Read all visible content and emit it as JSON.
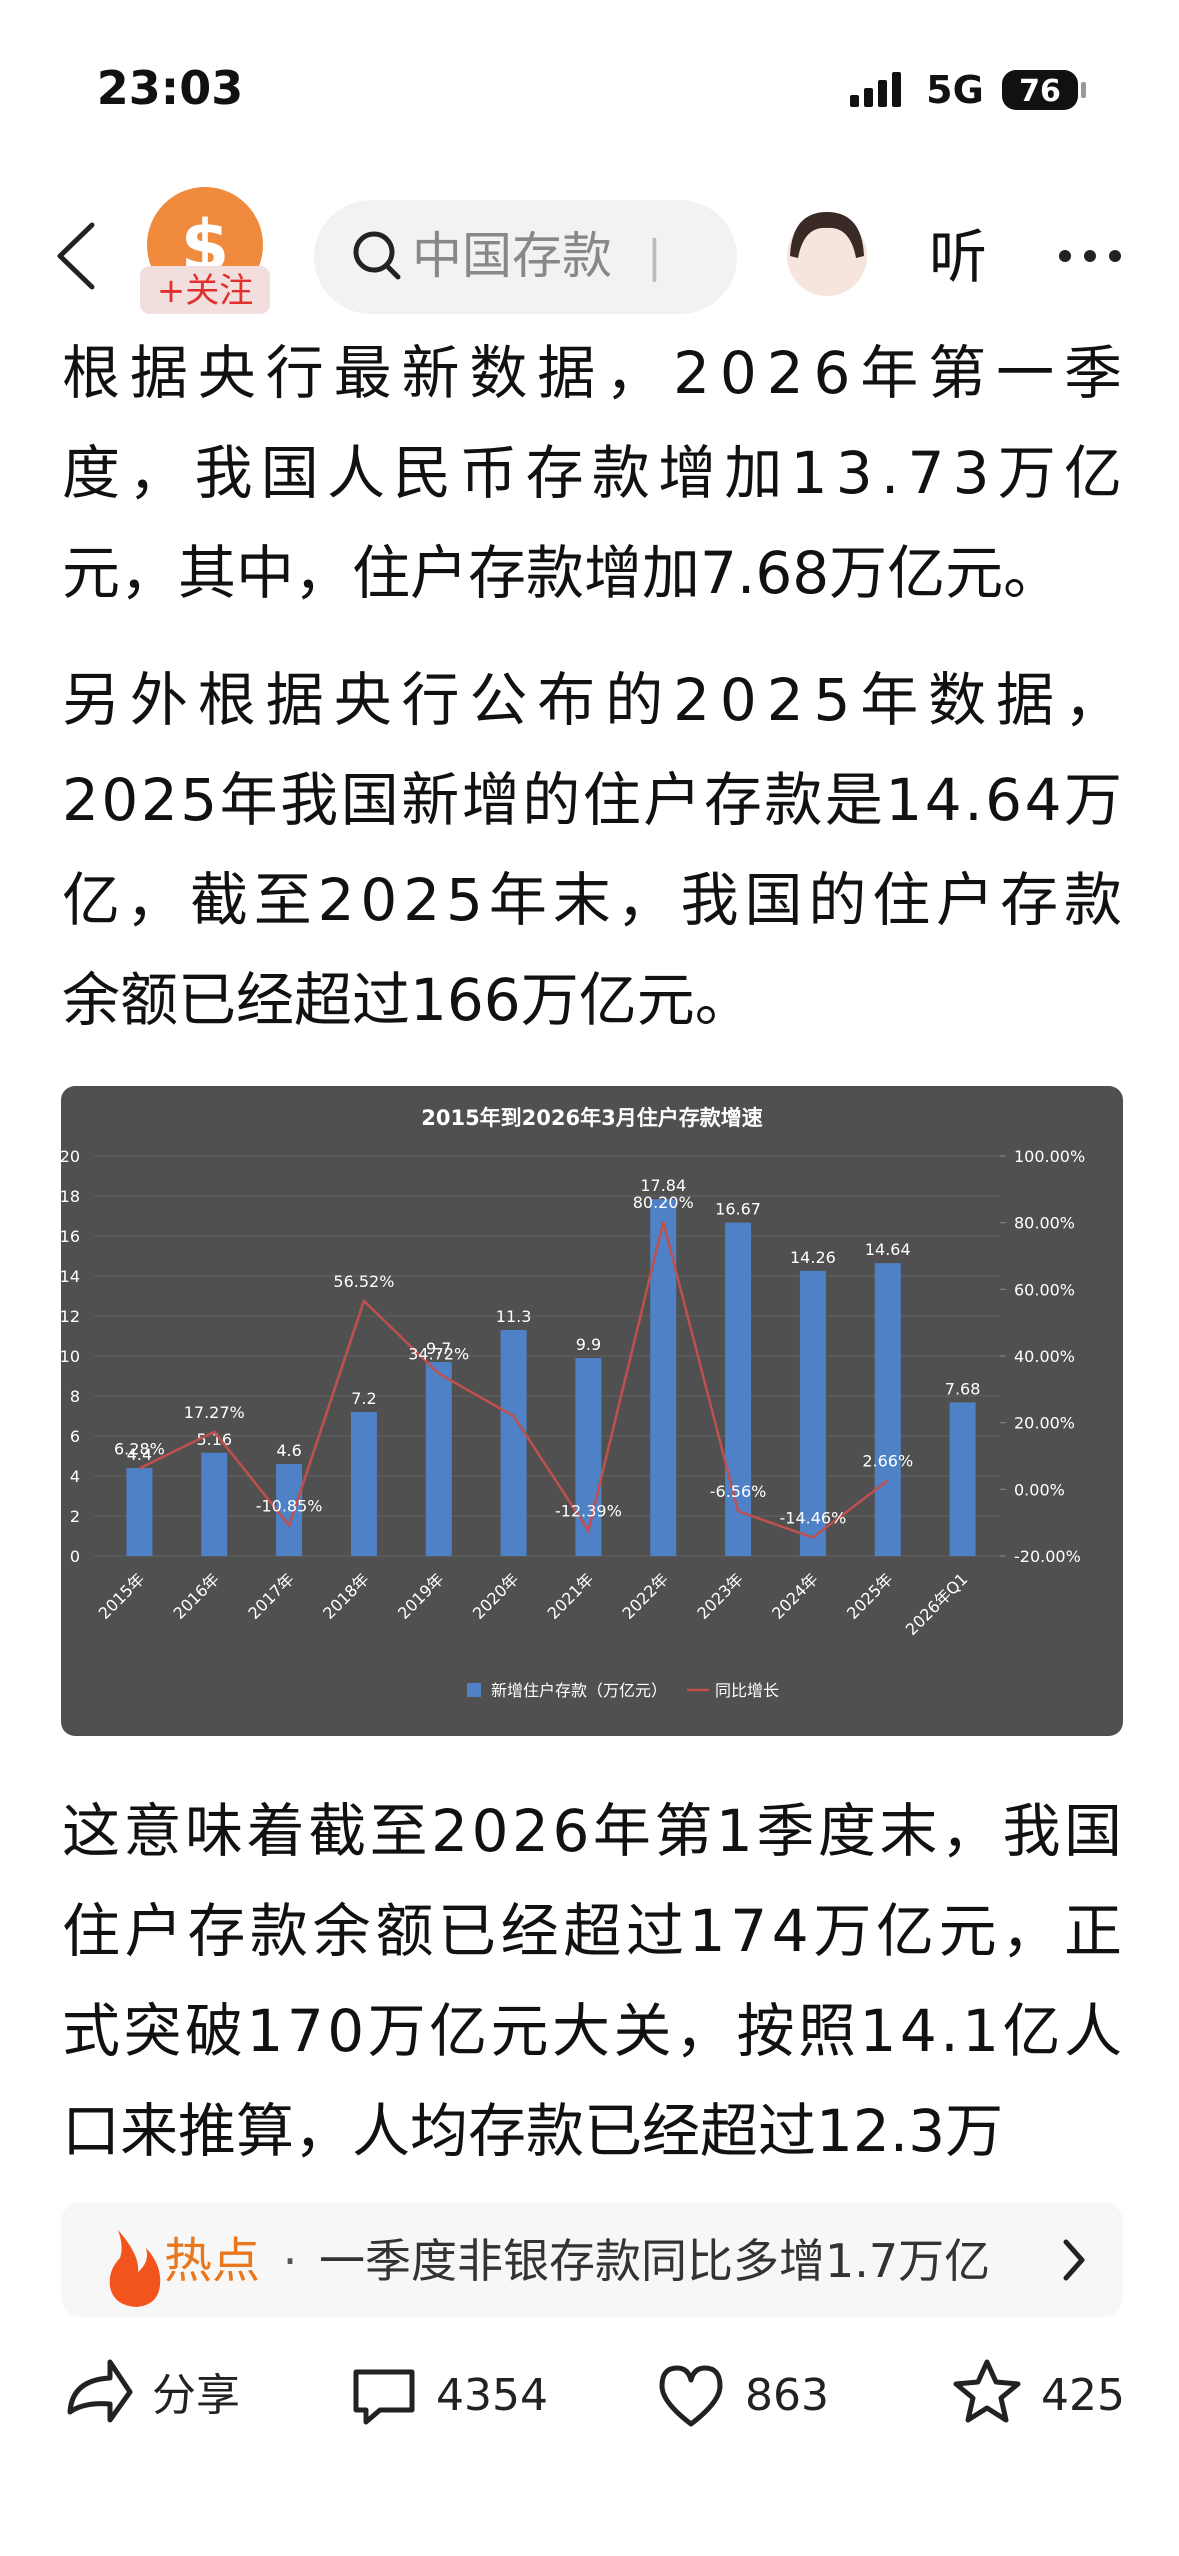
{
  "status_bar": {
    "time": "23:03",
    "network": "5G",
    "battery": "76"
  },
  "nav": {
    "follow": "+关注",
    "search": "中国存款",
    "listen": "听"
  },
  "article": {
    "paragraphs": [
      [
        "根据央行最新数据，2026年第一季",
        "度，我国人民币存款增加13.73万亿",
        "元，其中，住户存款增加7.68万亿元。"
      ],
      [
        "另外根据央行公布的2025年数据，",
        "2025年我国新增的住户存款是14.64万",
        "亿，截至2025年末，我国的住户存款",
        "余额已经超过166万亿元。"
      ],
      [
        "这意味着截至2026年第1季度末，我国",
        "住户存款余额已经超过174万亿元，正",
        "式突破170万亿元大关，按照14.1亿人",
        "口来推算，人均存款已经超过12.3万"
      ]
    ]
  },
  "chart_data": {
    "type": "bar",
    "title": "2015年到2026年3月住户存款增速",
    "categories": [
      "2015年",
      "2016年",
      "2017年",
      "2018年",
      "2019年",
      "2020年",
      "2021年",
      "2022年",
      "2023年",
      "2024年",
      "2025年",
      "2026年Q1"
    ],
    "series": [
      {
        "name": "新增住户存款（万亿元）",
        "color": "#4f81c6",
        "values": [
          4.4,
          5.16,
          4.6,
          7.2,
          9.7,
          11.3,
          9.9,
          17.84,
          16.67,
          14.26,
          14.64,
          7.68
        ]
      },
      {
        "name": "同比增长",
        "type": "line",
        "axis": "y2",
        "color": "#c0504d",
        "values": [
          6.28,
          17.27,
          -10.85,
          56.52,
          34.72,
          22,
          -12.39,
          80.2,
          -6.56,
          -14.46,
          2.66,
          null
        ],
        "value_labels": [
          "6.28%",
          "17.27%",
          "-10.85%",
          "56.52%",
          "34.72%",
          null,
          "-12.39%",
          "80.20%",
          "-6.56%",
          "-14.46%",
          "2.66%",
          null
        ]
      }
    ],
    "ylim": [
      0,
      20
    ],
    "yticks": [
      0,
      2,
      4,
      6,
      8,
      10,
      12,
      14,
      16,
      18,
      20
    ],
    "y2lim": [
      -20,
      100
    ],
    "y2ticks": [
      {
        "value": -20,
        "label": "-20.00%"
      },
      {
        "value": 0,
        "label": "0.00%"
      },
      {
        "value": 20,
        "label": "20.00%"
      },
      {
        "value": 40,
        "label": "40.00%"
      },
      {
        "value": 60,
        "label": "60.00%"
      },
      {
        "value": 80,
        "label": "80.00%"
      },
      {
        "value": 100,
        "label": "100.00%"
      }
    ],
    "legend": "bottom"
  },
  "hot": {
    "tag": "热点",
    "separator": "·",
    "text": "一季度非银存款同比多增1.7万亿"
  },
  "actions": {
    "share": "分享",
    "comments": "4354",
    "likes": "863",
    "favorites": "425"
  }
}
